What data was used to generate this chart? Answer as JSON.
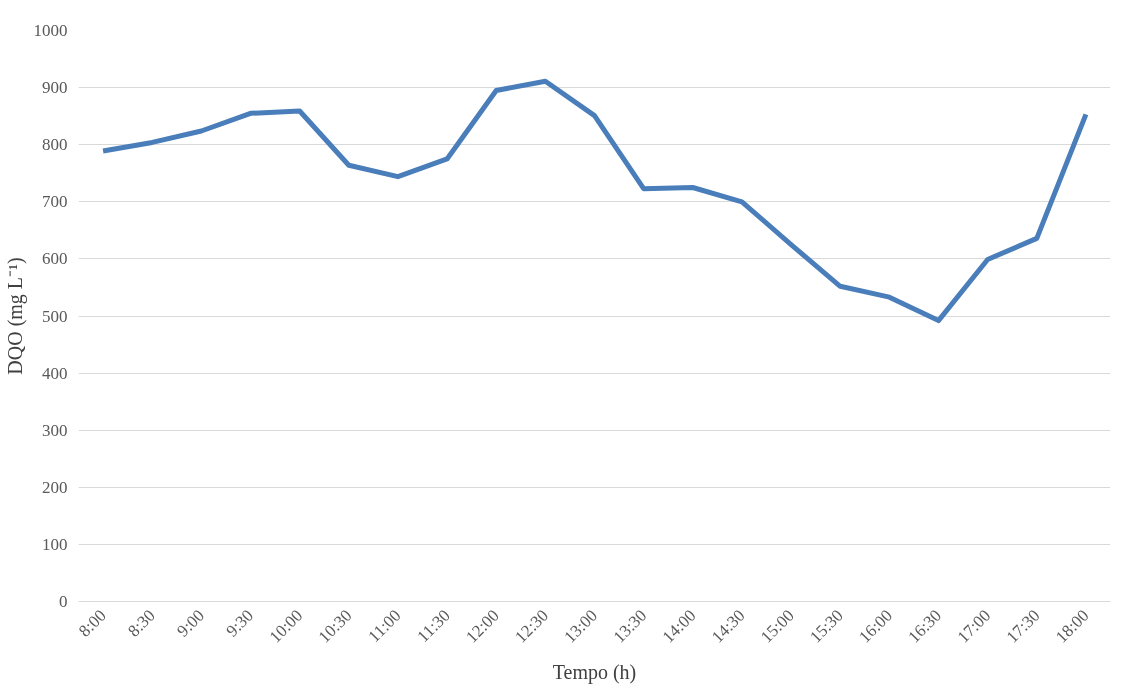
{
  "chart_data": {
    "type": "line",
    "xlabel": "Tempo (h)",
    "ylabel": "DQO (mg L⁻¹)",
    "categories": [
      "8:00",
      "8:30",
      "9:00",
      "9:30",
      "10:00",
      "10:30",
      "11:00",
      "11:30",
      "12:00",
      "12:30",
      "13:00",
      "13:30",
      "14:00",
      "14:30",
      "15:00",
      "15:30",
      "16:00",
      "16:30",
      "17:00",
      "17:30",
      "18:00"
    ],
    "series": [
      {
        "color": "#4a7ebb",
        "values": [
          789,
          804,
          824,
          855,
          859,
          764,
          744,
          775,
          895,
          911,
          851,
          723,
          725,
          700,
          625,
          552,
          533,
          492,
          599,
          636,
          853
        ]
      }
    ],
    "ylim": [
      0,
      1000
    ],
    "yticks": [
      0,
      100,
      200,
      300,
      400,
      500,
      600,
      700,
      800,
      900,
      1000
    ],
    "grid": "y",
    "marker": "none",
    "line_style": "solid"
  }
}
